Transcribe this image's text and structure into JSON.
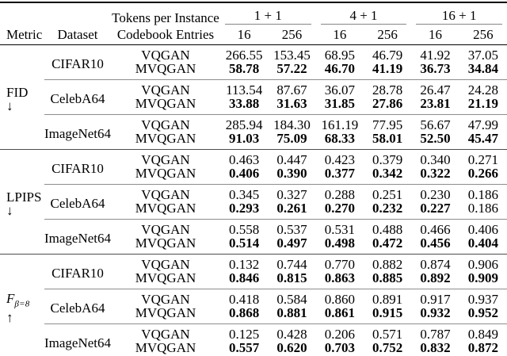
{
  "table": {
    "header": {
      "metric": "Metric",
      "dataset": "Dataset",
      "tokens_per_instance": "Tokens per Instance",
      "codebook_entries": "Codebook Entries",
      "token_groups": [
        {
          "label": "1 + 1"
        },
        {
          "label": "4 + 1"
        },
        {
          "label": "16 + 1"
        }
      ],
      "codebook_sizes": [
        "16",
        "256",
        "16",
        "256",
        "16",
        "256"
      ]
    },
    "rules": {
      "heavy_rule_color": "#000000",
      "section_rule_color": "#4c4c4c",
      "group_rule_color": "#8d8d8d",
      "cmidrule_color": "#868686"
    },
    "sections": [
      {
        "metric_label": "FID",
        "metric_sub": "",
        "direction_arrow": "↓",
        "groups": [
          {
            "dataset": "CIFAR10",
            "rows": [
              {
                "method": "VQGAN",
                "bold": false,
                "values": [
                  "266.55",
                  "153.45",
                  "68.95",
                  "46.79",
                  "41.92",
                  "37.05"
                ]
              },
              {
                "method": "MVQGAN",
                "bold": true,
                "values": [
                  "58.78",
                  "57.22",
                  "46.70",
                  "41.19",
                  "36.73",
                  "34.84"
                ]
              }
            ]
          },
          {
            "dataset": "CelebA64",
            "rows": [
              {
                "method": "VQGAN",
                "bold": false,
                "values": [
                  "113.54",
                  "87.67",
                  "36.07",
                  "28.78",
                  "26.47",
                  "24.28"
                ]
              },
              {
                "method": "MVQGAN",
                "bold": true,
                "values": [
                  "33.88",
                  "31.63",
                  "31.85",
                  "27.86",
                  "23.81",
                  "21.19"
                ]
              }
            ]
          },
          {
            "dataset": "ImageNet64",
            "rows": [
              {
                "method": "VQGAN",
                "bold": false,
                "values": [
                  "285.94",
                  "184.30",
                  "161.19",
                  "77.95",
                  "56.67",
                  "47.99"
                ]
              },
              {
                "method": "MVQGAN",
                "bold": true,
                "values": [
                  "91.03",
                  "75.09",
                  "68.33",
                  "58.01",
                  "52.50",
                  "45.47"
                ]
              }
            ]
          }
        ]
      },
      {
        "metric_label": "LPIPS",
        "metric_sub": "",
        "direction_arrow": "↓",
        "groups": [
          {
            "dataset": "CIFAR10",
            "rows": [
              {
                "method": "VQGAN",
                "bold": false,
                "values": [
                  "0.463",
                  "0.447",
                  "0.423",
                  "0.379",
                  "0.340",
                  "0.271"
                ]
              },
              {
                "method": "MVQGAN",
                "bold": true,
                "values": [
                  "0.406",
                  "0.390",
                  "0.377",
                  "0.342",
                  "0.322",
                  "0.266"
                ]
              }
            ]
          },
          {
            "dataset": "CelebA64",
            "rows": [
              {
                "method": "VQGAN",
                "bold": false,
                "values": [
                  "0.345",
                  "0.327",
                  "0.288",
                  "0.251",
                  "0.230",
                  "0.186"
                ]
              },
              {
                "method": "MVQGAN",
                "bold": true,
                "bold_mask": [
                  1,
                  1,
                  1,
                  1,
                  1,
                  0
                ],
                "values": [
                  "0.293",
                  "0.261",
                  "0.270",
                  "0.232",
                  "0.227",
                  "0.186"
                ]
              }
            ]
          },
          {
            "dataset": "ImageNet64",
            "rows": [
              {
                "method": "VQGAN",
                "bold": false,
                "values": [
                  "0.558",
                  "0.537",
                  "0.531",
                  "0.488",
                  "0.466",
                  "0.406"
                ]
              },
              {
                "method": "MVQGAN",
                "bold": true,
                "values": [
                  "0.514",
                  "0.497",
                  "0.498",
                  "0.472",
                  "0.456",
                  "0.404"
                ]
              }
            ]
          }
        ]
      },
      {
        "metric_label": "F",
        "metric_sub": "β=8",
        "direction_arrow": "↑",
        "groups": [
          {
            "dataset": "CIFAR10",
            "rows": [
              {
                "method": "VQGAN",
                "bold": false,
                "values": [
                  "0.132",
                  "0.744",
                  "0.770",
                  "0.882",
                  "0.874",
                  "0.906"
                ]
              },
              {
                "method": "MVQGAN",
                "bold": true,
                "values": [
                  "0.846",
                  "0.815",
                  "0.863",
                  "0.885",
                  "0.892",
                  "0.909"
                ]
              }
            ]
          },
          {
            "dataset": "CelebA64",
            "rows": [
              {
                "method": "VQGAN",
                "bold": false,
                "values": [
                  "0.418",
                  "0.584",
                  "0.860",
                  "0.891",
                  "0.917",
                  "0.937"
                ]
              },
              {
                "method": "MVQGAN",
                "bold": true,
                "values": [
                  "0.868",
                  "0.881",
                  "0.861",
                  "0.915",
                  "0.932",
                  "0.952"
                ]
              }
            ]
          },
          {
            "dataset": "ImageNet64",
            "rows": [
              {
                "method": "VQGAN",
                "bold": false,
                "values": [
                  "0.125",
                  "0.428",
                  "0.206",
                  "0.571",
                  "0.787",
                  "0.849"
                ]
              },
              {
                "method": "MVQGAN",
                "bold": true,
                "values": [
                  "0.557",
                  "0.620",
                  "0.703",
                  "0.752",
                  "0.832",
                  "0.872"
                ]
              }
            ]
          }
        ]
      }
    ]
  }
}
